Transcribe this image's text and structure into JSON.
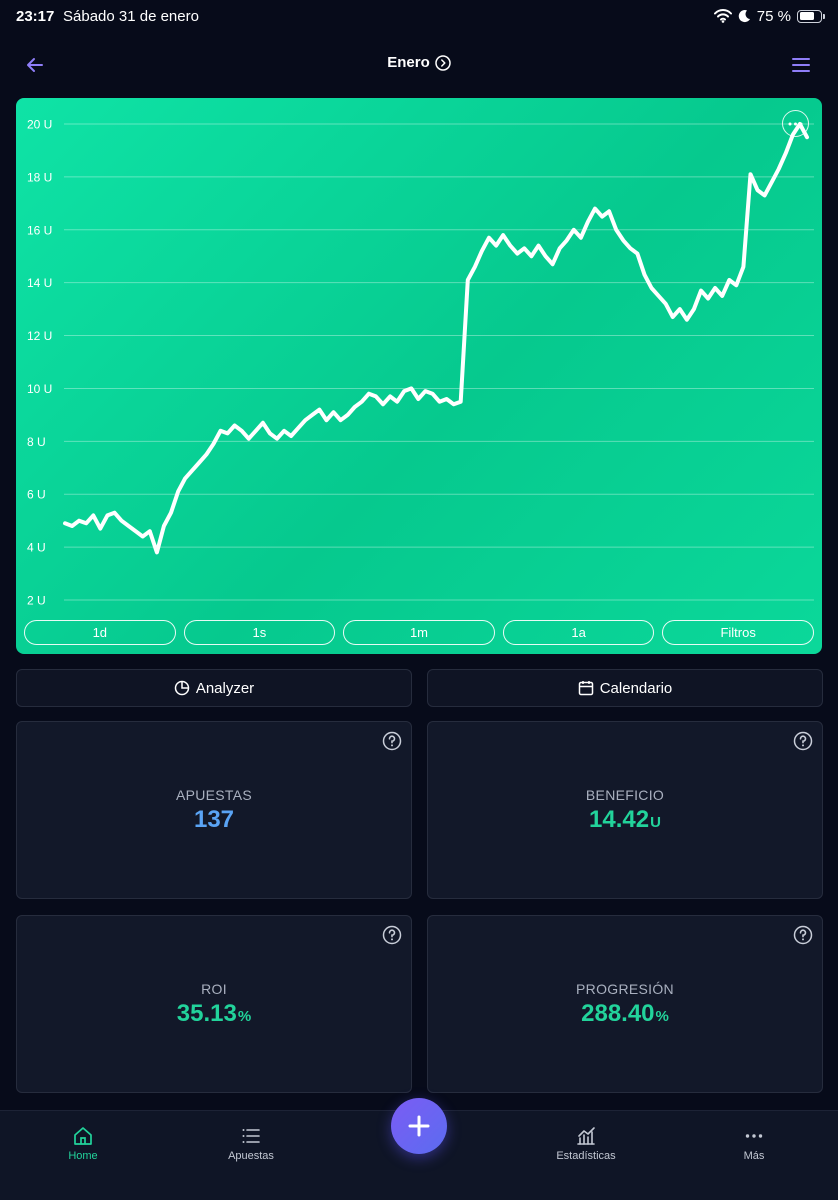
{
  "status_bar": {
    "time": "23:17",
    "date": "Sábado 31 de enero",
    "battery": "75 %"
  },
  "header": {
    "title": "Enero"
  },
  "chart_data": {
    "type": "line",
    "title": "",
    "xlabel": "",
    "ylabel": "",
    "y_unit": "U",
    "ylim": [
      1.5,
      20.5
    ],
    "y_ticks": [
      2,
      4,
      6,
      8,
      10,
      12,
      14,
      16,
      18,
      20
    ],
    "y_tick_labels": [
      "2 U",
      "4 U",
      "6 U",
      "8 U",
      "10 U",
      "12 U",
      "14 U",
      "16 U",
      "18 U",
      "20 U"
    ],
    "grid": true,
    "series": [
      {
        "name": "Progresión",
        "color": "#ffffff",
        "values": [
          4.9,
          4.8,
          5.0,
          4.9,
          5.2,
          4.7,
          5.2,
          5.3,
          5.0,
          4.8,
          4.6,
          4.4,
          4.6,
          3.8,
          4.8,
          5.3,
          6.1,
          6.6,
          6.9,
          7.2,
          7.5,
          7.9,
          8.4,
          8.3,
          8.6,
          8.4,
          8.1,
          8.4,
          8.7,
          8.3,
          8.1,
          8.4,
          8.2,
          8.5,
          8.8,
          9.0,
          9.2,
          8.8,
          9.1,
          8.8,
          9.0,
          9.3,
          9.5,
          9.8,
          9.7,
          9.4,
          9.7,
          9.5,
          9.9,
          10.0,
          9.6,
          9.9,
          9.8,
          9.5,
          9.6,
          9.4,
          9.5,
          14.1,
          14.6,
          15.2,
          15.7,
          15.4,
          15.8,
          15.4,
          15.1,
          15.3,
          15.0,
          15.4,
          15.0,
          14.7,
          15.3,
          15.6,
          16.0,
          15.7,
          16.3,
          16.8,
          16.5,
          16.7,
          16.0,
          15.6,
          15.3,
          15.1,
          14.3,
          13.8,
          13.5,
          13.2,
          12.7,
          13.0,
          12.6,
          13.0,
          13.7,
          13.4,
          13.8,
          13.5,
          14.1,
          13.9,
          14.6,
          18.1,
          17.5,
          17.3,
          17.8,
          18.3,
          18.9,
          19.6,
          20.0,
          19.5
        ]
      }
    ]
  },
  "chart_controls": {
    "more_icon": "ellipsis-icon",
    "ranges": [
      "1d",
      "1s",
      "1m",
      "1a",
      "Filtros"
    ]
  },
  "actions": {
    "analyzer": "Analyzer",
    "calendar": "Calendario"
  },
  "stats": {
    "apuestas": {
      "label": "APUESTAS",
      "value": "137",
      "unit": ""
    },
    "beneficio": {
      "label": "BENEFICIO",
      "value": "14.42",
      "unit": "U"
    },
    "roi": {
      "label": "ROI",
      "value": "35.13",
      "unit": "%"
    },
    "progresion": {
      "label": "PROGRESIÓN",
      "value": "288.40",
      "unit": "%"
    }
  },
  "nav": {
    "home": "Home",
    "apuestas": "Apuestas",
    "estadisticas": "Estadísticas",
    "mas": "Más"
  },
  "colors": {
    "background": "#070b1a",
    "chart_green": "#0bd89a",
    "accent_green": "#22d39b",
    "accent_blue": "#5aa4f5",
    "fab_purple": "#6f5ef3",
    "header_icon": "#8f7ef8"
  }
}
